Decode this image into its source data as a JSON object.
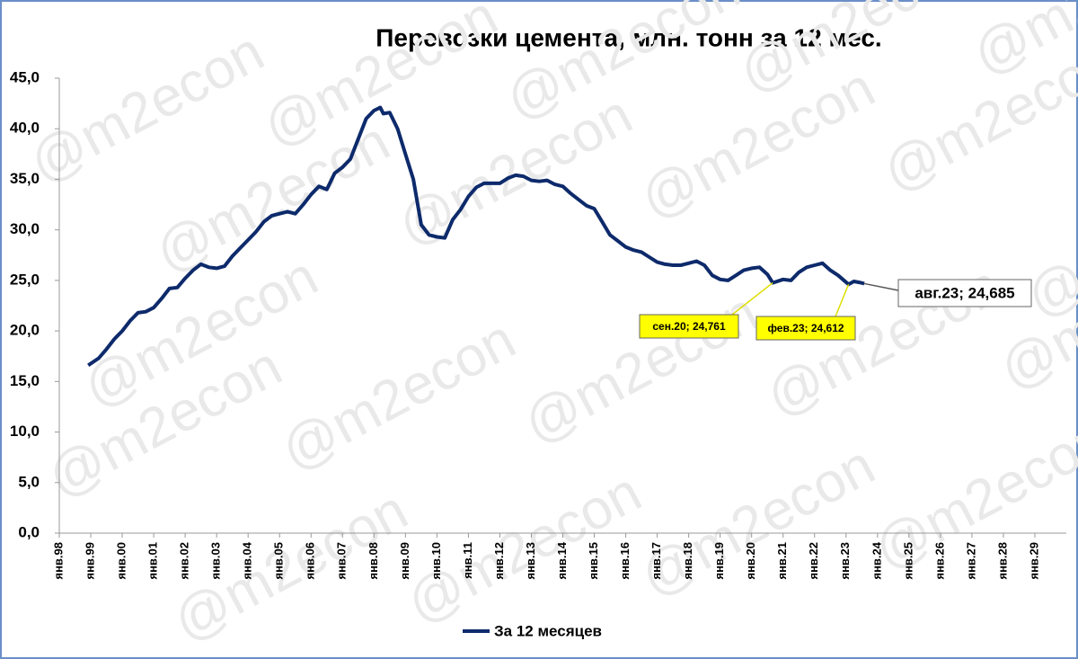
{
  "chart_data": {
    "type": "line",
    "title": "Перевозки цемента, млн. тонн за 12 мес.",
    "watermark": "@m2econ",
    "x": [
      1998.92,
      1999.25,
      1999.5,
      1999.75,
      2000.0,
      2000.25,
      2000.5,
      2000.75,
      2001.0,
      2001.25,
      2001.5,
      2001.75,
      2002.0,
      2002.25,
      2002.5,
      2002.75,
      2003.0,
      2003.25,
      2003.5,
      2003.75,
      2004.0,
      2004.25,
      2004.5,
      2004.75,
      2005.0,
      2005.25,
      2005.5,
      2005.75,
      2006.0,
      2006.25,
      2006.5,
      2006.75,
      2007.0,
      2007.25,
      2007.5,
      2007.75,
      2008.0,
      2008.2,
      2008.3,
      2008.5,
      2008.75,
      2009.0,
      2009.25,
      2009.5,
      2009.75,
      2010.0,
      2010.25,
      2010.5,
      2010.75,
      2011.0,
      2011.25,
      2011.5,
      2011.75,
      2012.0,
      2012.25,
      2012.5,
      2012.75,
      2013.0,
      2013.25,
      2013.5,
      2013.75,
      2014.0,
      2014.25,
      2014.5,
      2014.75,
      2015.0,
      2015.25,
      2015.5,
      2015.75,
      2016.0,
      2016.25,
      2016.5,
      2016.75,
      2017.0,
      2017.25,
      2017.5,
      2017.75,
      2018.0,
      2018.25,
      2018.5,
      2018.75,
      2019.0,
      2019.25,
      2019.5,
      2019.75,
      2020.0,
      2020.25,
      2020.5,
      2020.67,
      2021.0,
      2021.25,
      2021.5,
      2021.75,
      2022.0,
      2022.25,
      2022.5,
      2022.75,
      2023.08,
      2023.25,
      2023.42,
      2023.58
    ],
    "series": [
      {
        "name": "За 12 месяцев",
        "color": "#0d2a6b",
        "values": [
          16.6,
          17.3,
          18.2,
          19.2,
          20.0,
          21.0,
          21.8,
          21.9,
          22.3,
          23.2,
          24.2,
          24.3,
          25.2,
          26.0,
          26.6,
          26.3,
          26.2,
          26.4,
          27.4,
          28.2,
          29.0,
          29.8,
          30.8,
          31.4,
          31.6,
          31.8,
          31.6,
          32.5,
          33.5,
          34.3,
          34.0,
          35.6,
          36.2,
          37.0,
          39.0,
          41.0,
          41.8,
          42.1,
          41.5,
          41.6,
          40.0,
          37.5,
          35.0,
          30.5,
          29.5,
          29.3,
          29.2,
          31.0,
          32.0,
          33.3,
          34.2,
          34.6,
          34.6,
          34.6,
          35.1,
          35.4,
          35.3,
          34.9,
          34.8,
          34.9,
          34.5,
          34.3,
          33.6,
          33.0,
          32.4,
          32.1,
          30.8,
          29.5,
          28.9,
          28.3,
          28.0,
          27.8,
          27.3,
          26.8,
          26.6,
          26.5,
          26.5,
          26.7,
          26.9,
          26.5,
          25.5,
          25.1,
          25.0,
          25.5,
          26.0,
          26.2,
          26.3,
          25.6,
          24.761,
          25.1,
          25.0,
          25.8,
          26.3,
          26.5,
          26.7,
          26.0,
          25.5,
          24.612,
          24.9,
          24.8,
          24.685
        ]
      }
    ],
    "annotations": [
      {
        "text": "сен.20; 24,761"
      },
      {
        "text": "фев.23; 24,612"
      },
      {
        "text": "авг.23; 24,685"
      }
    ],
    "xlim": [
      1998,
      2030
    ],
    "xticks": [
      {
        "value": 1998,
        "label": "янв.98"
      },
      {
        "value": 1999,
        "label": "янв.99"
      },
      {
        "value": 2000,
        "label": "янв.00"
      },
      {
        "value": 2001,
        "label": "янв.01"
      },
      {
        "value": 2002,
        "label": "янв.02"
      },
      {
        "value": 2003,
        "label": "янв.03"
      },
      {
        "value": 2004,
        "label": "янв.04"
      },
      {
        "value": 2005,
        "label": "янв.05"
      },
      {
        "value": 2006,
        "label": "янв.06"
      },
      {
        "value": 2007,
        "label": "янв.07"
      },
      {
        "value": 2008,
        "label": "янв.08"
      },
      {
        "value": 2009,
        "label": "янв.09"
      },
      {
        "value": 2010,
        "label": "янв.10"
      },
      {
        "value": 2011,
        "label": "янв.11"
      },
      {
        "value": 2012,
        "label": "янв.12"
      },
      {
        "value": 2013,
        "label": "янв.13"
      },
      {
        "value": 2014,
        "label": "янв.14"
      },
      {
        "value": 2015,
        "label": "янв.15"
      },
      {
        "value": 2016,
        "label": "янв.16"
      },
      {
        "value": 2017,
        "label": "янв.17"
      },
      {
        "value": 2018,
        "label": "янв.18"
      },
      {
        "value": 2019,
        "label": "янв.19"
      },
      {
        "value": 2020,
        "label": "янв.20"
      },
      {
        "value": 2021,
        "label": "янв.21"
      },
      {
        "value": 2022,
        "label": "янв.22"
      },
      {
        "value": 2023,
        "label": "янв.23"
      },
      {
        "value": 2024,
        "label": "янв.24"
      },
      {
        "value": 2025,
        "label": "янв.25"
      },
      {
        "value": 2026,
        "label": "янв.26"
      },
      {
        "value": 2027,
        "label": "янв.27"
      },
      {
        "value": 2028,
        "label": "янв.28"
      },
      {
        "value": 2029,
        "label": "янв.29"
      }
    ],
    "ylim": [
      0,
      45
    ],
    "yticks": [
      {
        "value": 0,
        "label": "0,0"
      },
      {
        "value": 5,
        "label": "5,0"
      },
      {
        "value": 10,
        "label": "10,0"
      },
      {
        "value": 15,
        "label": "15,0"
      },
      {
        "value": 20,
        "label": "20,0"
      },
      {
        "value": 25,
        "label": "25,0"
      },
      {
        "value": 30,
        "label": "30,0"
      },
      {
        "value": 35,
        "label": "35,0"
      },
      {
        "value": 40,
        "label": "40,0"
      },
      {
        "value": 45,
        "label": "45,0"
      }
    ],
    "grid": false
  }
}
